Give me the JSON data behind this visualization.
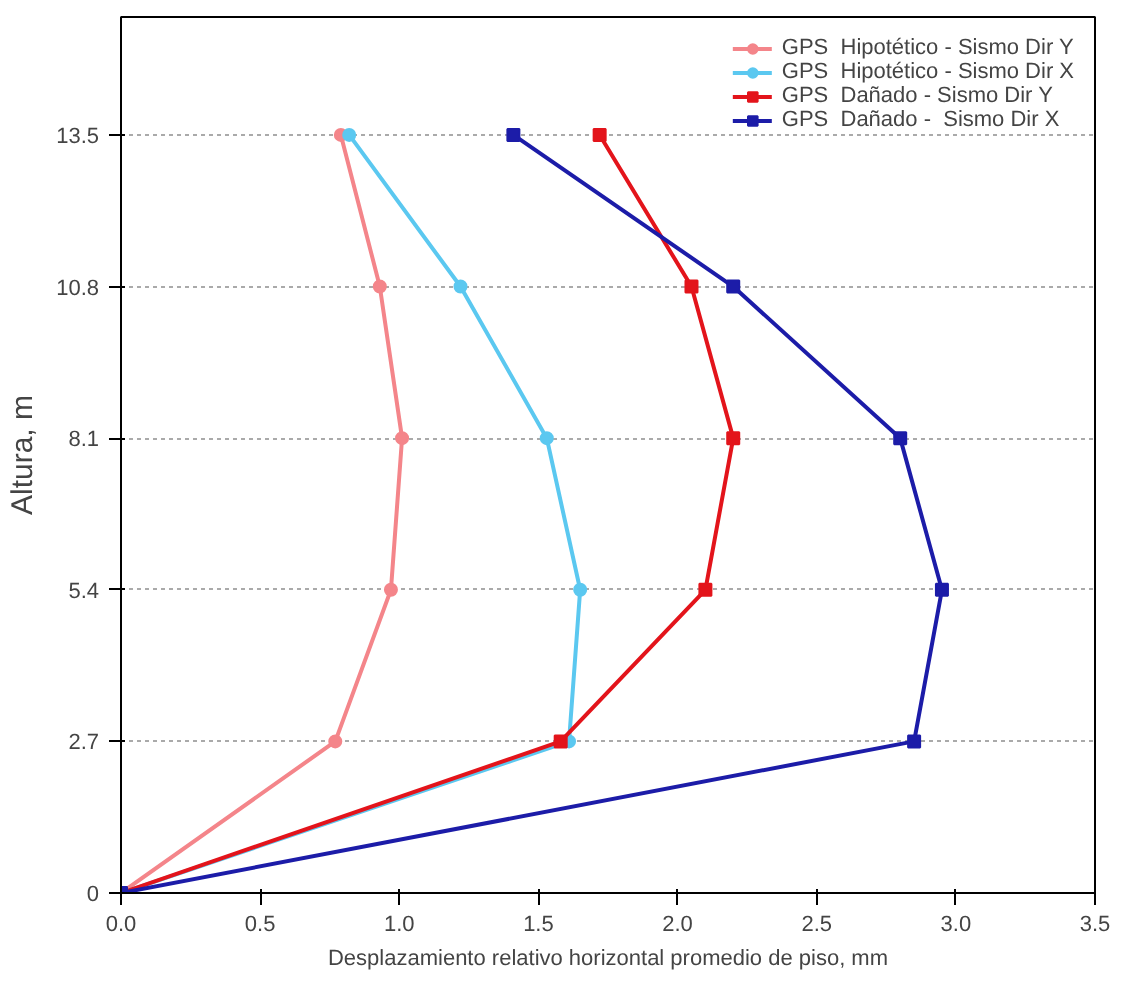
{
  "chart_data": {
    "type": "line",
    "xlabel": "Desplazamiento relativo horizontal promedio de piso, mm",
    "ylabel": "Altura, m",
    "xlim": [
      0,
      3.5
    ],
    "xticks": [
      {
        "value": 0,
        "label": "0.0"
      },
      0.5,
      {
        "value": 1,
        "label": "1.0"
      },
      1.5,
      {
        "value": 2,
        "label": "2.0"
      },
      2.5,
      {
        "value": 3,
        "label": "3.0"
      },
      3.5
    ],
    "ylim": [
      0,
      15.6
    ],
    "yticks": [
      0,
      2.7,
      5.4,
      8.1,
      10.8,
      13.5
    ],
    "grid": "y",
    "legend": "top right",
    "line_style": "solid",
    "series": [
      {
        "name": "GPS  Hipotético - Sismo Dir Y",
        "color": "#f4858a",
        "marker": "circle",
        "x": [
          0,
          0.77,
          0.97,
          1.01,
          0.93,
          0.79
        ],
        "values": [
          0,
          2.7,
          5.4,
          8.1,
          10.8,
          13.5
        ]
      },
      {
        "name": "GPS  Hipotético - Sismo Dir X",
        "color": "#5bc8f0",
        "marker": "circle",
        "x": [
          0,
          1.61,
          1.65,
          1.53,
          1.22,
          0.82
        ],
        "values": [
          0,
          2.7,
          5.4,
          8.1,
          10.8,
          13.5
        ]
      },
      {
        "name": "GPS  Dañado - Sismo Dir Y",
        "color": "#e3141b",
        "marker": "square",
        "x": [
          0,
          1.58,
          2.1,
          2.2,
          2.05,
          1.72
        ],
        "values": [
          0,
          2.7,
          5.4,
          8.1,
          10.8,
          13.5
        ]
      },
      {
        "name": "GPS  Dañado -  Sismo Dir X",
        "color": "#1c1ca8",
        "marker": "square",
        "x": [
          0,
          2.85,
          2.95,
          2.8,
          2.2,
          1.41
        ],
        "values": [
          0,
          2.7,
          5.4,
          8.1,
          10.8,
          13.5
        ]
      }
    ]
  }
}
